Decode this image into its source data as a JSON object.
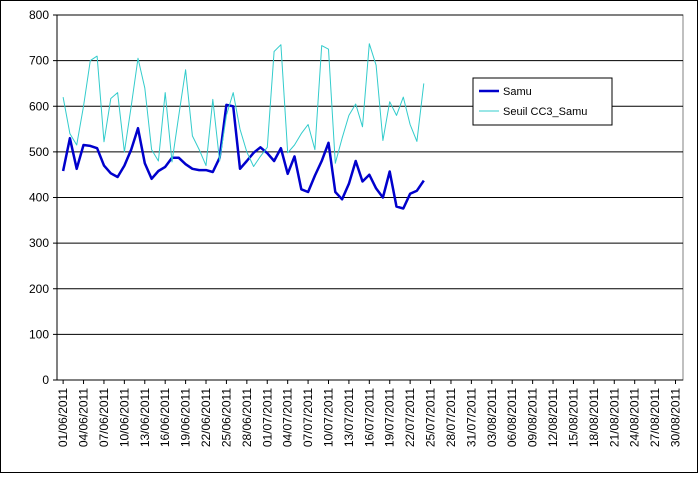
{
  "chart_data": {
    "type": "line",
    "categories": [
      "01/06/2011",
      null,
      null,
      "04/06/2011",
      null,
      null,
      "07/06/2011",
      null,
      null,
      "10/06/2011",
      null,
      null,
      "13/06/2011",
      null,
      null,
      "16/06/2011",
      null,
      null,
      "19/06/2011",
      null,
      null,
      "22/06/2011",
      null,
      null,
      "25/06/2011",
      null,
      null,
      "28/06/2011",
      null,
      null,
      "01/07/2011",
      null,
      null,
      "04/07/2011",
      null,
      null,
      "07/07/2011",
      null,
      null,
      "10/07/2011",
      null,
      null,
      "13/07/2011",
      null,
      null,
      "16/07/2011",
      null,
      null,
      "19/07/2011",
      null,
      null,
      "22/07/2011",
      null,
      null,
      "25/07/2011",
      null,
      null,
      "28/07/2011",
      null,
      null,
      "31/07/2011",
      null,
      null,
      "03/08/2011",
      null,
      null,
      "06/08/2011",
      null,
      null,
      "09/08/2011",
      null,
      null,
      "12/08/2011",
      null,
      null,
      "15/08/2011",
      null,
      null,
      "18/08/2011",
      null,
      null,
      "21/08/2011",
      null,
      null,
      "24/08/2011",
      null,
      null,
      "27/08/2011",
      null,
      null,
      "30/08/2011",
      null
    ],
    "series": [
      {
        "name": "Samu",
        "color": "#0000cc",
        "width": 2.5,
        "values": [
          458,
          530,
          463,
          515,
          513,
          508,
          470,
          453,
          445,
          470,
          505,
          552,
          475,
          441,
          458,
          467,
          487,
          487,
          473,
          463,
          460,
          460,
          456,
          487,
          603,
          600,
          463,
          480,
          498,
          510,
          497,
          480,
          508,
          452,
          490,
          418,
          412,
          448,
          480,
          520,
          412,
          396,
          430,
          480,
          435,
          450,
          420,
          400,
          457,
          380,
          376,
          408,
          415,
          437,
          null,
          null,
          null,
          null,
          null,
          null,
          null,
          null,
          null,
          null,
          null,
          null,
          null,
          null,
          null,
          null,
          null,
          null,
          null,
          null,
          null,
          null,
          null,
          null,
          null,
          null,
          null,
          null,
          null,
          null,
          null,
          null,
          null,
          null,
          null,
          null,
          null,
          null
        ]
      },
      {
        "name": "Seuil CC3_Samu",
        "color": "#33cccc",
        "width": 1,
        "values": [
          620,
          540,
          515,
          600,
          700,
          710,
          522,
          617,
          630,
          500,
          600,
          705,
          640,
          505,
          480,
          630,
          478,
          580,
          680,
          535,
          505,
          470,
          615,
          480,
          580,
          630,
          550,
          500,
          468,
          490,
          510,
          720,
          735,
          498,
          515,
          540,
          560,
          505,
          733,
          725,
          475,
          530,
          580,
          605,
          555,
          737,
          690,
          525,
          610,
          580,
          620,
          560,
          523,
          650,
          null,
          null,
          null,
          null,
          null,
          null,
          null,
          null,
          null,
          null,
          null,
          null,
          null,
          null,
          null,
          null,
          null,
          null,
          null,
          null,
          null,
          null,
          null,
          null,
          null,
          null,
          null,
          null,
          null,
          null,
          null,
          null,
          null,
          null,
          null,
          null,
          null,
          null
        ]
      }
    ],
    "ylim": [
      0,
      800
    ],
    "yticks": [
      0,
      100,
      200,
      300,
      400,
      500,
      600,
      700,
      800
    ],
    "grid": true,
    "legend": "right"
  }
}
